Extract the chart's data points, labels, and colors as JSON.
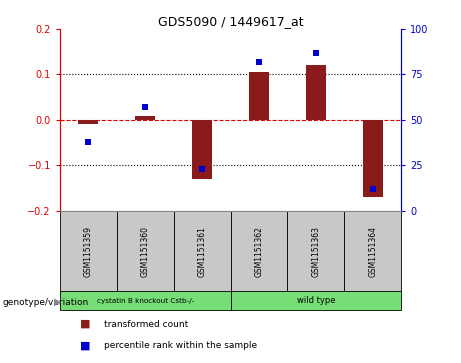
{
  "title": "GDS5090 / 1449617_at",
  "samples": [
    "GSM1151359",
    "GSM1151360",
    "GSM1151361",
    "GSM1151362",
    "GSM1151363",
    "GSM1151364"
  ],
  "transformed_count": [
    -0.01,
    0.008,
    -0.13,
    0.105,
    0.12,
    -0.17
  ],
  "percentile_rank": [
    38,
    57,
    23,
    82,
    87,
    12
  ],
  "group1_label": "cystatin B knockout Cstb-/-",
  "group2_label": "wild type",
  "group1_indices": [
    0,
    1,
    2
  ],
  "group2_indices": [
    3,
    4,
    5
  ],
  "group_color": "#77DD77",
  "ylim_left": [
    -0.2,
    0.2
  ],
  "ylim_right": [
    0,
    100
  ],
  "yticks_left": [
    -0.2,
    -0.1,
    0.0,
    0.1,
    0.2
  ],
  "yticks_right": [
    0,
    25,
    50,
    75,
    100
  ],
  "bar_color": "#8B1A1A",
  "scatter_color": "#0000CC",
  "hline_color": "#DD0000",
  "dotted_color": "#000000",
  "bg_color": "#FFFFFF",
  "sample_bg": "#C8C8C8",
  "label_row_text": "genotype/variation",
  "legend_bar": "transformed count",
  "legend_scatter": "percentile rank within the sample",
  "bar_width": 0.35
}
